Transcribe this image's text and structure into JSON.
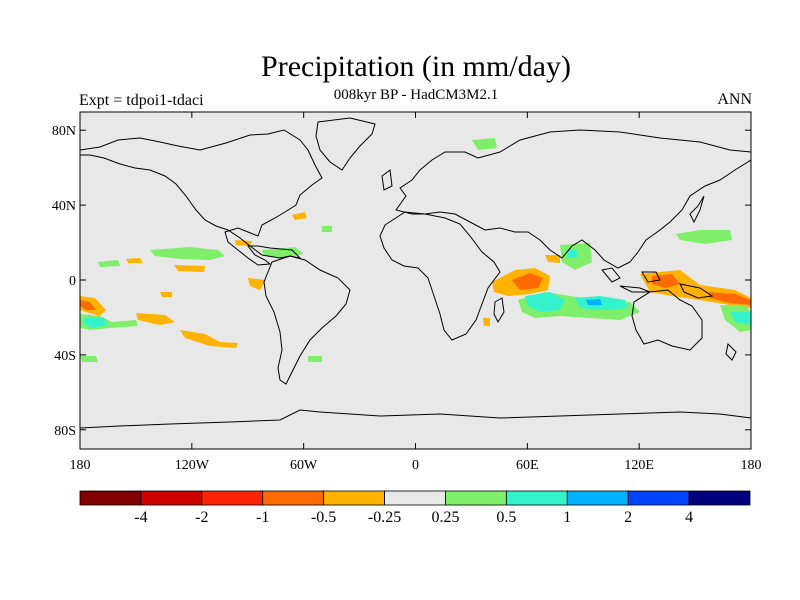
{
  "title": "Precipitation (in mm/day)",
  "subtitle": "008kyr BP - HadCM3M2.1",
  "left_label": "Expt = tdpoi1-tdaci",
  "right_label": "ANN",
  "y_ticks": [
    {
      "label": "80N",
      "lat": 80
    },
    {
      "label": "40N",
      "lat": 40
    },
    {
      "label": "0",
      "lat": 0
    },
    {
      "label": "40S",
      "lat": -40
    },
    {
      "label": "80S",
      "lat": -80
    }
  ],
  "x_ticks": [
    {
      "label": "180",
      "lon": -180
    },
    {
      "label": "120W",
      "lon": -120
    },
    {
      "label": "60W",
      "lon": -60
    },
    {
      "label": "0",
      "lon": 0
    },
    {
      "label": "60E",
      "lon": 60
    },
    {
      "label": "120E",
      "lon": 120
    },
    {
      "label": "180",
      "lon": 180
    }
  ],
  "colorbar": {
    "colors": [
      "#800000",
      "#cc0000",
      "#ff2200",
      "#ff6a00",
      "#ffb300",
      "#e8e8e8",
      "#7fef6b",
      "#33f2cc",
      "#00b2ff",
      "#0044ff",
      "#00007f"
    ],
    "labels": [
      "-4",
      "-2",
      "-1",
      "-0.5",
      "-0.25",
      "0.25",
      "0.5",
      "1",
      "2",
      "4"
    ]
  },
  "colors": {
    "ocean_land_bg": "#e8e8e8",
    "coast": "#000000"
  }
}
